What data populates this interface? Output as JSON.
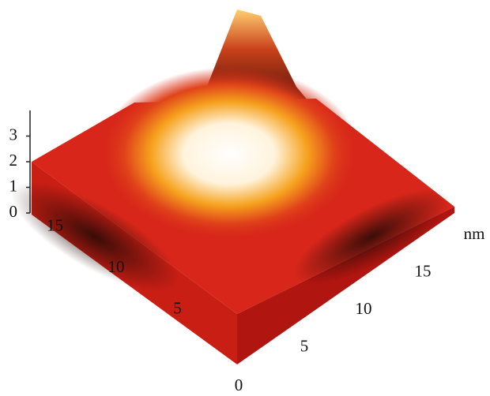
{
  "chart_data": {
    "type": "surface",
    "unit": "nm",
    "xlim": [
      0,
      19
    ],
    "xticks": [
      0,
      5,
      10,
      15
    ],
    "ylim": [
      0,
      19
    ],
    "yticks": [
      5,
      10,
      15
    ],
    "zlim": [
      0,
      4
    ],
    "zticks": [
      0,
      1,
      2,
      3
    ]
  }
}
